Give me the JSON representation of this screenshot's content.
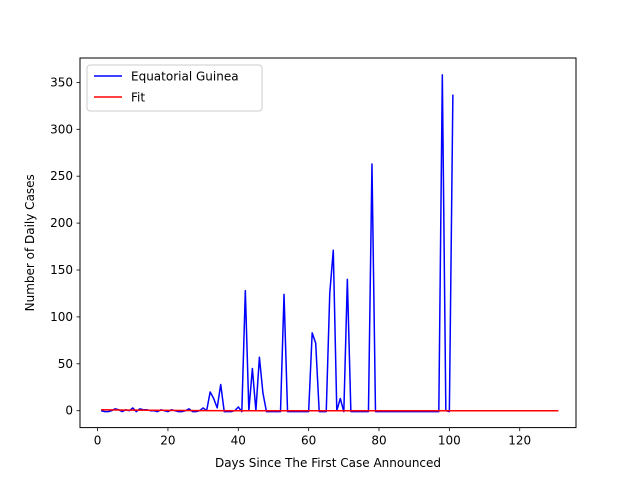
{
  "chart_data": {
    "type": "line",
    "title": "",
    "xlabel": "Days Since The First Case Announced",
    "ylabel": "Number of Daily Cases",
    "xlim": [
      -5,
      136
    ],
    "ylim": [
      -18,
      376
    ],
    "xticks": [
      0,
      20,
      40,
      60,
      80,
      100,
      120
    ],
    "yticks": [
      0,
      50,
      100,
      150,
      200,
      250,
      300,
      350
    ],
    "grid": false,
    "legend_position": "top-left",
    "series": [
      {
        "name": "Equatorial Guinea",
        "color": "#0000ff",
        "x": [
          1,
          2,
          3,
          4,
          5,
          6,
          7,
          8,
          9,
          10,
          11,
          12,
          13,
          14,
          15,
          16,
          17,
          18,
          19,
          20,
          21,
          22,
          23,
          24,
          25,
          26,
          27,
          28,
          29,
          30,
          31,
          32,
          33,
          34,
          35,
          36,
          37,
          38,
          39,
          40,
          41,
          42,
          43,
          44,
          45,
          46,
          47,
          48,
          49,
          50,
          51,
          52,
          53,
          54,
          55,
          56,
          57,
          58,
          59,
          60,
          61,
          62,
          63,
          64,
          65,
          66,
          67,
          68,
          69,
          70,
          71,
          72,
          73,
          74,
          75,
          76,
          77,
          78,
          79,
          80,
          81,
          82,
          83,
          84,
          85,
          86,
          87,
          88,
          89,
          90,
          91,
          92,
          93,
          94,
          95,
          96,
          97,
          98,
          99,
          100,
          101
        ],
        "y": [
          0,
          -1,
          -1,
          0,
          2,
          1,
          -1,
          1,
          0,
          3,
          -1,
          2,
          1,
          1,
          0,
          0,
          -1,
          1,
          0,
          -1,
          1,
          0,
          -1,
          -1,
          0,
          2,
          -1,
          -1,
          0,
          3,
          0,
          20,
          13,
          3,
          28,
          -1,
          -1,
          -1,
          0,
          4,
          -1,
          128,
          0,
          45,
          0,
          57,
          19,
          -1,
          -1,
          -1,
          -1,
          -1,
          124,
          -1,
          -1,
          -1,
          -1,
          -1,
          -1,
          -1,
          83,
          72,
          -1,
          -1,
          -1,
          125,
          171,
          0,
          13,
          -1,
          140,
          -1,
          -1,
          -1,
          -1,
          -1,
          -1,
          263,
          -1,
          -1,
          -1,
          -1,
          -1,
          -1,
          -1,
          -1,
          -1,
          -1,
          -1,
          -1,
          -1,
          -1,
          -1,
          -1,
          -1,
          -1,
          -1,
          358,
          0,
          -1,
          337
        ]
      },
      {
        "name": "Fit",
        "color": "#ff0000",
        "x": [
          1,
          10,
          20,
          30,
          40,
          50,
          60,
          70,
          80,
          90,
          100,
          110,
          120,
          131
        ],
        "y": [
          1,
          0.6,
          0.3,
          0.1,
          0,
          0,
          0,
          0,
          0,
          0,
          0,
          0,
          0,
          0
        ]
      }
    ]
  }
}
